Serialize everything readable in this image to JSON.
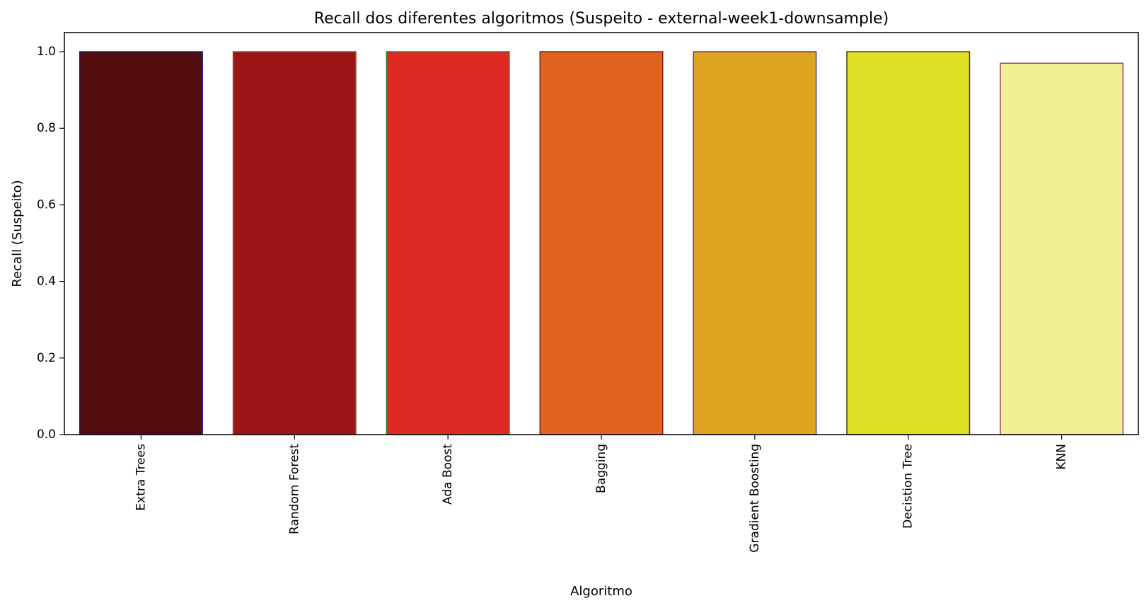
{
  "chart_data": {
    "type": "bar",
    "title": "Recall dos diferentes algoritmos (Suspeito - external-week1-downsample)",
    "xlabel": "Algoritmo",
    "ylabel": "Recall (Suspeito)",
    "ylim": [
      0,
      1.05
    ],
    "yticks": [
      "0.0",
      "0.2",
      "0.4",
      "0.6",
      "0.8",
      "1.0"
    ],
    "grid": false,
    "categories": [
      "Extra Trees",
      "Random Forest",
      "Ada Boost",
      "Bagging",
      "Gradient Boosting",
      "Decistion Tree",
      "KNN"
    ],
    "values": [
      1.0,
      1.0,
      1.0,
      1.0,
      1.0,
      1.0,
      0.97
    ],
    "colors": [
      "#520c0e",
      "#9b1518",
      "#de2822",
      "#e06420",
      "#e0a423",
      "#e0e026",
      "#f0f090"
    ],
    "edge_colors": [
      "#1a1a8c",
      "#a0522d",
      "#2e7d32",
      "#8b1a1a",
      "#5a3a8a",
      "#4a3a1a",
      "#9b3a7a"
    ]
  }
}
